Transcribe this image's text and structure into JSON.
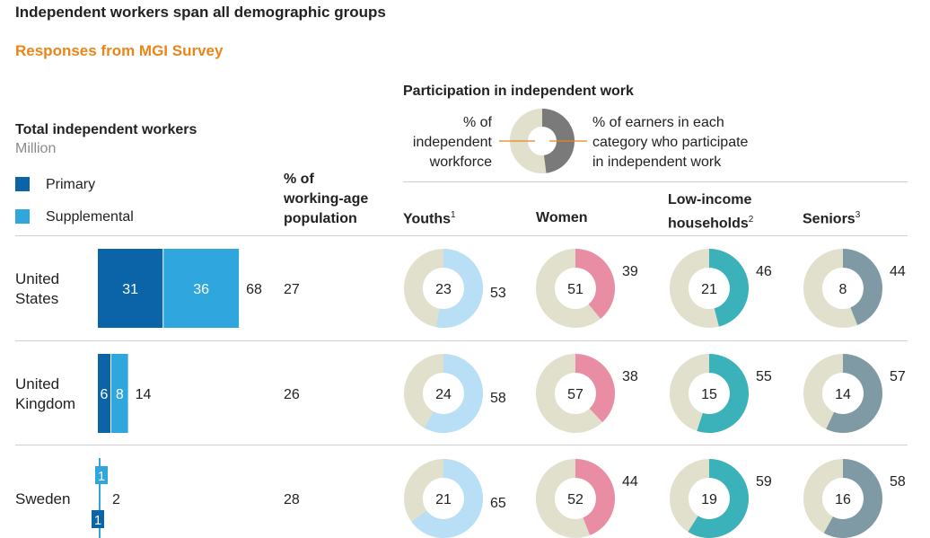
{
  "title": "Independent workers span all demographic groups",
  "subtitle": "Responses from MGI Survey",
  "total": {
    "title": "Total independent workers",
    "unit": "Million",
    "legend": [
      {
        "label": "Primary",
        "color": "#0B64A8"
      },
      {
        "label": "Supplemental",
        "color": "#2FA6DE"
      }
    ]
  },
  "pct_working_age_header": [
    "% of",
    "working-age",
    "population"
  ],
  "participation": {
    "title": "Participation in independent work",
    "left_label": [
      "% of",
      "independent",
      "workforce"
    ],
    "right_label": [
      "% of earners in each",
      "category who participate",
      "in independent work"
    ]
  },
  "categories": [
    {
      "label": "Youths",
      "sup": "1"
    },
    {
      "label": "Women",
      "sup": ""
    },
    {
      "label": "Low-income households",
      "label_lines": [
        "Low-income",
        "households"
      ],
      "sup": "2"
    },
    {
      "label": "Seniors",
      "sup": "3"
    }
  ],
  "chart_data": {
    "type": "bar+donut",
    "title": "Independent workers span all demographic groups",
    "countries": [
      {
        "name": "United States",
        "name_lines": [
          "United",
          "States"
        ],
        "primary": 31,
        "supplemental": 36,
        "total": 68,
        "pct_working_age": 27,
        "donuts": [
          {
            "category": "Youths",
            "workforce_pct": 23,
            "participate_pct": 53
          },
          {
            "category": "Women",
            "workforce_pct": 51,
            "participate_pct": 39
          },
          {
            "category": "Low-income households",
            "workforce_pct": 21,
            "participate_pct": 46
          },
          {
            "category": "Seniors",
            "workforce_pct": 8,
            "participate_pct": 44
          }
        ]
      },
      {
        "name": "United Kingdom",
        "name_lines": [
          "United",
          "Kingdom"
        ],
        "primary": 6,
        "supplemental": 8,
        "total": 14,
        "pct_working_age": 26,
        "donuts": [
          {
            "category": "Youths",
            "workforce_pct": 24,
            "participate_pct": 58
          },
          {
            "category": "Women",
            "workforce_pct": 57,
            "participate_pct": 38
          },
          {
            "category": "Low-income households",
            "workforce_pct": 15,
            "participate_pct": 55
          },
          {
            "category": "Seniors",
            "workforce_pct": 14,
            "participate_pct": 57
          }
        ]
      },
      {
        "name": "Sweden",
        "name_lines": [
          "Sweden"
        ],
        "primary": 1,
        "supplemental": 1,
        "total": 2,
        "pct_working_age": 28,
        "donuts": [
          {
            "category": "Youths",
            "workforce_pct": 21,
            "participate_pct": 65
          },
          {
            "category": "Women",
            "workforce_pct": 52,
            "participate_pct": 44
          },
          {
            "category": "Low-income households",
            "workforce_pct": 19,
            "participate_pct": 59
          },
          {
            "category": "Seniors",
            "workforce_pct": 16,
            "participate_pct": 58
          }
        ]
      }
    ],
    "legend_example": {
      "participate_pct": 48
    },
    "colors": {
      "primary": "#0B64A8",
      "supplemental": "#2FA6DE",
      "donut_base": "#E1E0CD",
      "youths": "#B9DFF6",
      "women": "#E98DA5",
      "low_income": "#3BB1BA",
      "seniors": "#7F99A5",
      "legend_fill": "#7A7A7A",
      "leader": "#E8861A"
    }
  }
}
